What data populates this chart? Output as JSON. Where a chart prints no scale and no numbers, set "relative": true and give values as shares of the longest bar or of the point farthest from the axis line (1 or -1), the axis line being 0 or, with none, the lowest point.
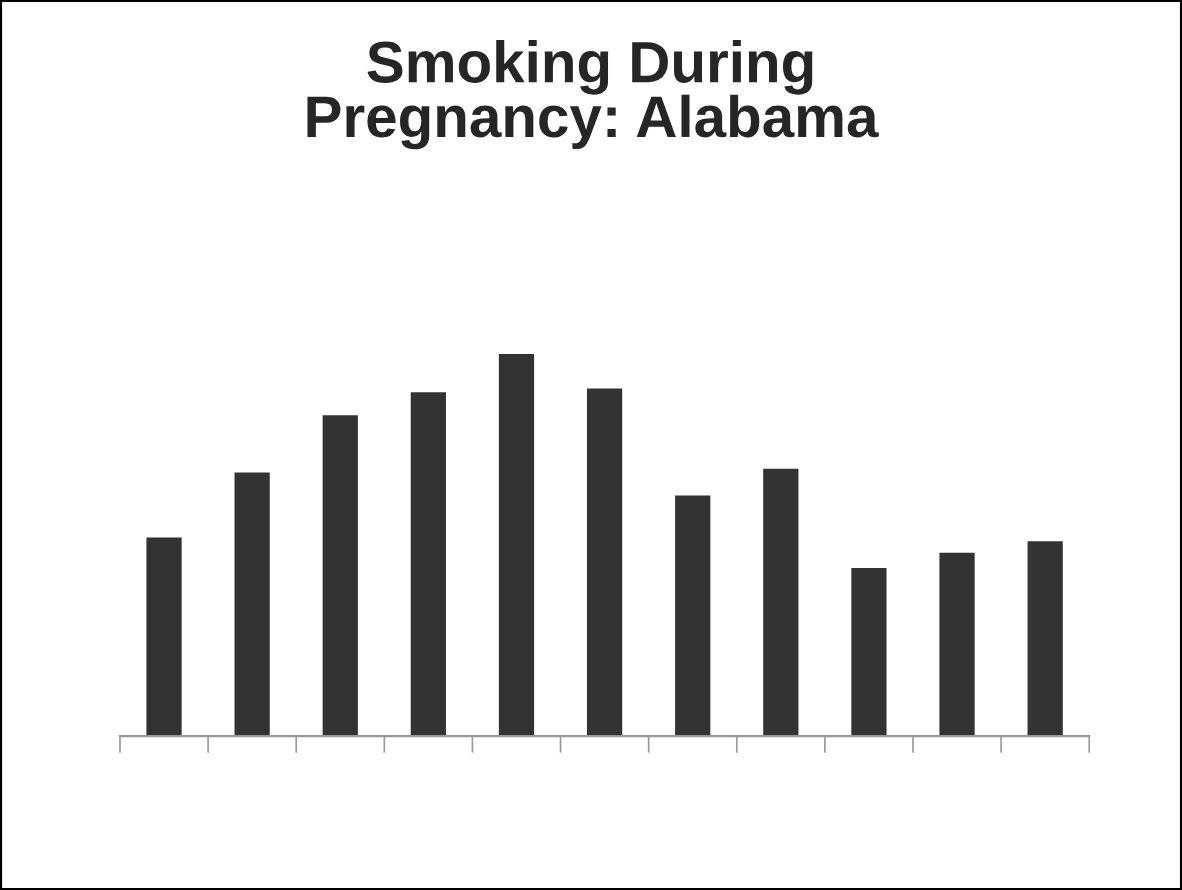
{
  "chart_data": {
    "type": "bar",
    "title": "Smoking During\nPregnancy: Alabama",
    "relative": true,
    "categories": [
      null,
      null,
      null,
      null,
      null,
      null,
      null,
      null,
      null,
      null,
      null
    ],
    "color": "#333333",
    "values": [
      0.52,
      0.69,
      0.84,
      0.9,
      1.0,
      0.91,
      0.63,
      0.7,
      0.44,
      0.48,
      0.51
    ],
    "grid": false,
    "legend": false
  }
}
